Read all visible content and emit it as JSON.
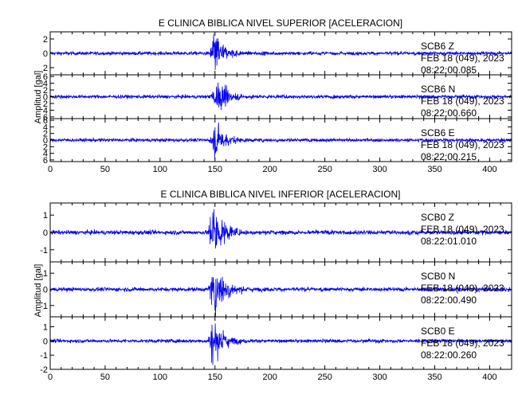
{
  "chart_data": [
    {
      "type": "line",
      "title": "E CLINICA BIBLICA NIVEL SUPERIOR [ACELERACION]",
      "ylabel": "Amplitud [gal]",
      "xlim": [
        0,
        420
      ],
      "x_ticks": [
        "0",
        "50",
        "100",
        "150",
        "200",
        "250",
        "300",
        "350",
        "400"
      ],
      "series": [
        {
          "station": "SCB6",
          "component": "Z",
          "date": "FEB 18 (049), 2023",
          "time": "08:22:00.085",
          "ylim": [
            -3,
            3
          ],
          "y_ticks": [
            "2",
            "0",
            "2"
          ],
          "y_tick_values": [
            2,
            0,
            -2
          ],
          "noise": 0.12,
          "onset": 145,
          "peak": 2.8,
          "peak_time": 149,
          "decay": 9
        },
        {
          "station": "SCB6",
          "component": "N",
          "date": "FEB 18 (049), 2023",
          "time": "08:22:00.660",
          "ylim": [
            -6.5,
            6.5
          ],
          "y_ticks": [
            "6",
            "4",
            "2",
            "0",
            "2",
            "4",
            "6"
          ],
          "y_tick_values": [
            6,
            4,
            2,
            0,
            -2,
            -4,
            -6
          ],
          "noise": 0.25,
          "onset": 145,
          "peak": 4.2,
          "peak_time": 152,
          "decay": 11
        },
        {
          "station": "SCB6",
          "component": "E",
          "date": "FEB 18 (049), 2023",
          "time": "08:22:00.215",
          "ylim": [
            -6.5,
            6.5
          ],
          "y_ticks": [
            "6",
            "4",
            "2",
            "0",
            "2",
            "4",
            "6"
          ],
          "y_tick_values": [
            6,
            4,
            2,
            0,
            -2,
            -4,
            -6
          ],
          "noise": 0.25,
          "onset": 145,
          "peak": 4.5,
          "peak_time": 150,
          "decay": 11
        }
      ]
    },
    {
      "type": "line",
      "title": "E CLINICA BIBLICA NIVEL INFERIOR [ACELERACION]",
      "ylabel": "Amplitud [gal]",
      "xlim": [
        0,
        420
      ],
      "x_ticks": [
        "0",
        "50",
        "100",
        "150",
        "200",
        "250",
        "300",
        "350",
        "400"
      ],
      "series": [
        {
          "station": "SCB0",
          "component": "Z",
          "date": "FEB 18 (049), 2023",
          "time": "08:22:01.010",
          "ylim": [
            -1.7,
            1.7
          ],
          "y_ticks": [
            "1",
            "0",
            "-1"
          ],
          "y_tick_values": [
            1,
            0,
            -1
          ],
          "noise": 0.06,
          "onset": 143,
          "peak": 1.5,
          "peak_time": 148,
          "decay": 10
        },
        {
          "station": "SCB0",
          "component": "N",
          "date": "FEB 18 (049), 2023",
          "time": "08:22:00.490",
          "ylim": [
            -1.7,
            1.7
          ],
          "y_ticks": [
            "1",
            "0",
            "-1"
          ],
          "y_tick_values": [
            1,
            0,
            -1
          ],
          "noise": 0.06,
          "onset": 143,
          "peak": 1.3,
          "peak_time": 150,
          "decay": 11
        },
        {
          "station": "SCB0",
          "component": "E",
          "date": "FEB 18 (049), 2023",
          "time": "08:22:00.260",
          "ylim": [
            -2,
            1.7
          ],
          "y_ticks": [
            "1",
            "0",
            "-1",
            "-2"
          ],
          "y_tick_values": [
            1,
            0,
            -1,
            -2
          ],
          "noise": 0.06,
          "onset": 143,
          "peak": 1.4,
          "peak_time": 148,
          "decay": 10
        }
      ]
    }
  ],
  "colors": {
    "trace": "#0000ee",
    "axes": "#000000"
  }
}
